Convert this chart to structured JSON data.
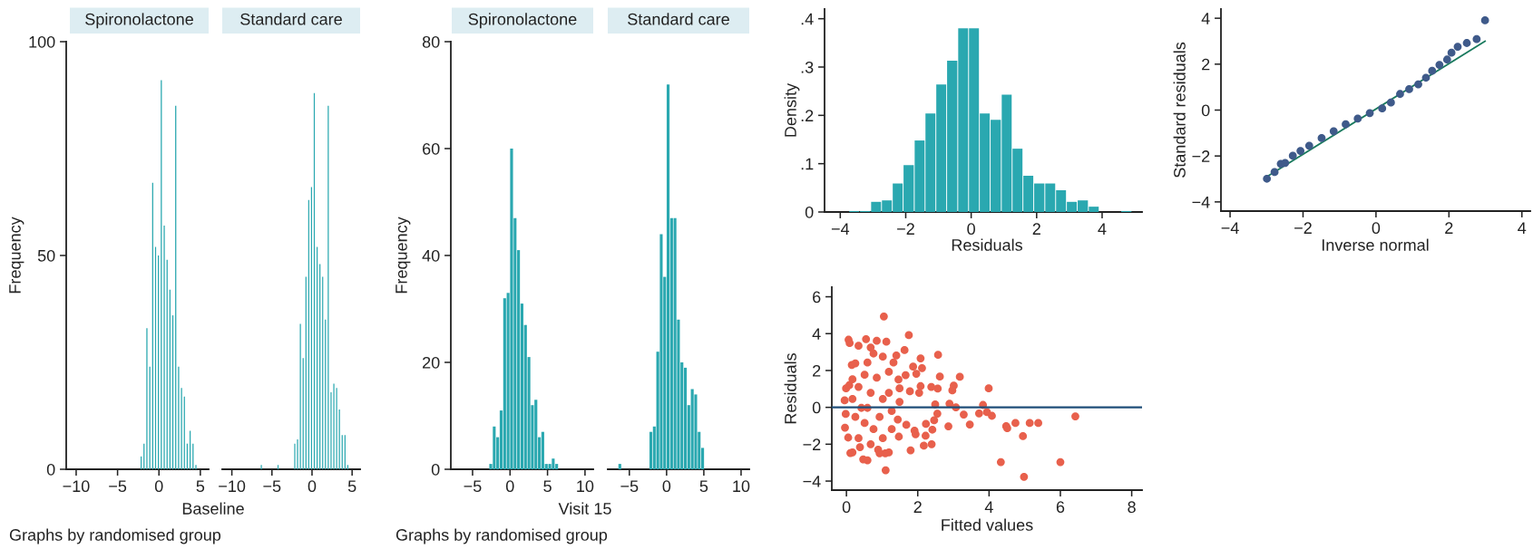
{
  "chart_data": [
    {
      "type": "histogram",
      "title": "Spironolactone",
      "xlabel": "Baseline",
      "ylabel": "Frequency",
      "annotations": [
        "Graphs by randomised group"
      ],
      "color": "#2aa8b0",
      "bins": [
        -2.32,
        -1.98,
        -1.63,
        -1.28,
        -0.93,
        -0.58,
        -0.24,
        0.11,
        0.46,
        0.81,
        1.16,
        1.5,
        1.85,
        2.2,
        2.55,
        2.9,
        3.24,
        3.59,
        3.94,
        4.29,
        4.64
      ],
      "values": [
        3,
        6,
        33,
        24,
        67,
        52,
        50,
        91,
        57,
        49,
        42,
        36,
        85,
        24,
        19,
        17,
        6,
        9,
        6,
        1
      ],
      "xlim": [
        -11.2,
        6
      ],
      "ylim": [
        0,
        100
      ],
      "xticks": [
        -10,
        -5,
        0,
        5
      ],
      "yticks": [
        0,
        50,
        100
      ]
    },
    {
      "type": "histogram",
      "title": "Standard care",
      "color": "#2aa8b0",
      "tick_labels": "x",
      "bins": [
        -6.5,
        -6.15,
        -5.8,
        -5.46,
        -5.11,
        -4.76,
        -4.41,
        -4.06,
        -3.72,
        -3.37,
        -3.02,
        -2.67,
        -2.32,
        -1.98,
        -1.63,
        -1.28,
        -0.93,
        -0.58,
        -0.24,
        0.11,
        0.46,
        0.81,
        1.16,
        1.5,
        1.85,
        2.2,
        2.55,
        2.9,
        3.24,
        3.59,
        3.94,
        4.29,
        4.64
      ],
      "values": [
        1,
        0,
        0,
        0,
        0,
        0,
        1,
        0,
        0,
        0,
        0,
        0,
        6,
        7,
        34,
        26,
        45,
        63,
        66,
        88,
        52,
        48,
        45,
        35,
        85,
        18,
        20,
        19,
        14,
        8,
        8,
        1
      ],
      "xlim": [
        -11.2,
        6
      ],
      "ylim": [
        0,
        100
      ],
      "xticks": [
        -10,
        -5,
        0,
        5
      ]
    },
    {
      "type": "histogram",
      "title": "Spironolactone",
      "xlabel": "Visit 15",
      "ylabel": "Frequency",
      "annotations": [
        "Graphs by randomised group"
      ],
      "color": "#2aa8b0",
      "bins": [
        -2.81,
        -2.34,
        -1.88,
        -1.42,
        -0.95,
        -0.49,
        -0.03,
        0.44,
        0.9,
        1.36,
        1.82,
        2.29,
        2.75,
        3.21,
        3.68,
        4.14,
        4.6,
        5.07,
        5.53,
        5.99,
        6.45
      ],
      "values": [
        1,
        8,
        6,
        11,
        32,
        33,
        60,
        47,
        41,
        31,
        27,
        21,
        12,
        13,
        6,
        7,
        1,
        1,
        2,
        1
      ],
      "xlim": [
        -7.9,
        11.1
      ],
      "ylim": [
        0,
        80
      ],
      "xticks": [
        -5,
        0,
        5,
        10
      ],
      "yticks": [
        0,
        20,
        40,
        60,
        80
      ]
    },
    {
      "type": "histogram",
      "title": "Standard care",
      "color": "#2aa8b0",
      "tick_labels": "x",
      "bins": [
        -6.51,
        -6.05,
        -5.58,
        -5.12,
        -4.66,
        -4.19,
        -3.73,
        -3.27,
        -2.81,
        -2.34,
        -1.88,
        -1.42,
        -0.95,
        -0.49,
        -0.03,
        0.44,
        0.9,
        1.36,
        1.82,
        2.29,
        2.75,
        3.21,
        3.68,
        4.14,
        4.6,
        5.07
      ],
      "values": [
        1,
        0,
        0,
        0,
        0,
        0,
        0,
        0,
        0,
        7,
        8,
        22,
        44,
        36,
        72,
        47,
        47,
        28,
        20,
        19,
        12,
        15,
        14,
        7,
        4
      ],
      "xlim": [
        -7.9,
        11.1
      ],
      "ylim": [
        0,
        80
      ],
      "xticks": [
        -5,
        0,
        5,
        10
      ]
    },
    {
      "type": "histogram",
      "xlabel": "Residuals",
      "ylabel": "Density",
      "color": "#2aa8b0",
      "bins": [
        -3.74,
        -3.41,
        -3.07,
        -2.74,
        -2.41,
        -2.08,
        -1.74,
        -1.41,
        -1.08,
        -0.75,
        -0.41,
        -0.08,
        0.25,
        0.58,
        0.92,
        1.25,
        1.58,
        1.91,
        2.25,
        2.58,
        2.91,
        3.24,
        3.58,
        3.91,
        4.24,
        4.57,
        4.91
      ],
      "values": [
        0.002,
        0.002,
        0.021,
        0.024,
        0.059,
        0.097,
        0.148,
        0.204,
        0.264,
        0.313,
        0.38,
        0.38,
        0.204,
        0.191,
        0.243,
        0.131,
        0.075,
        0.059,
        0.059,
        0.045,
        0.021,
        0.024,
        0.011,
        0,
        0,
        0.002
      ],
      "xlim": [
        -4.48,
        5.22
      ],
      "ylim": [
        0,
        0.42
      ],
      "xticks": [
        -4,
        -2,
        0,
        2,
        4
      ],
      "yticks": [
        0,
        {
          "value": 0.1,
          "label": ".1"
        },
        {
          "value": 0.2,
          "label": ".2"
        },
        {
          "value": 0.3,
          "label": ".3"
        },
        {
          "value": 0.4,
          "label": ".4"
        }
      ]
    },
    {
      "type": "scatter",
      "xlabel": "Inverse normal",
      "ylabel": "Standard residuals",
      "series": [
        {
          "type": "scatter",
          "marker": "circle",
          "color": "#3f5a8a",
          "x": [
            -2.99,
            -2.78,
            -2.61,
            -2.49,
            -2.28,
            -2.07,
            -1.83,
            -1.49,
            -1.16,
            -0.83,
            -0.5,
            -0.17,
            0.17,
            0.41,
            0.66,
            0.91,
            1.16,
            1.37,
            1.54,
            1.74,
            1.95,
            2.07,
            2.24,
            2.49,
            2.76,
            2.99
          ],
          "values": [
            -2.99,
            -2.7,
            -2.34,
            -2.3,
            -1.99,
            -1.78,
            -1.55,
            -1.22,
            -0.92,
            -0.62,
            -0.37,
            -0.13,
            0.07,
            0.33,
            0.7,
            0.91,
            1.12,
            1.41,
            1.71,
            1.97,
            2.2,
            2.5,
            2.76,
            2.92,
            3.09,
            3.91
          ]
        },
        {
          "type": "line",
          "marker": "none",
          "color": "#1a7a5e",
          "x": [
            -2.95,
            2.99
          ],
          "values": [
            -2.86,
            3.0
          ]
        }
      ],
      "xlim": [
        -4.25,
        4.23
      ],
      "ylim": [
        -4.4,
        4.4
      ],
      "xticks": [
        -4,
        -2,
        0,
        2,
        4
      ],
      "yticks": [
        -4,
        -2,
        0,
        2,
        4
      ]
    },
    {
      "type": "scatter",
      "xlabel": "Fitted values",
      "ylabel": "Residuals",
      "marker": "circle",
      "color": "#e8604c",
      "x": [
        1.05,
        1.75,
        0.06,
        0.09,
        0.55,
        0.34,
        0.85,
        1.12,
        1.63,
        2.57,
        1.4,
        1.32,
        2.08,
        1.87,
        2.12,
        1.96,
        2.62,
        3.18,
        1.66,
        1.46,
        3.01,
        2.97,
        3.99,
        2.56,
        2.38,
        2.08,
        1.78,
        2.04,
        2.89,
        2.49,
        3.07,
        3.83,
        3.72,
        3.94,
        4.08,
        3.29,
        2.55,
        2.46,
        2.23,
        3.46,
        2.86,
        2.41,
        1.91,
        1.94,
        2.22,
        1.68,
        4.48,
        4.51,
        4.74,
        5.14,
        5.38,
        4.95,
        6.42,
        4.33,
        6.0,
        4.98,
        2.39,
        2.17,
        1.8,
        1.1,
        1.19,
        1.09,
        0.89,
        0.59,
        0.47,
        0.11,
        0.17,
        0.05,
        -0.04,
        -0.02,
        -0.05,
        -0.01,
        0.08,
        0.17,
        0.15,
        0.25,
        1.47,
        1.44,
        1.49,
        1.49,
        0.42,
        0.68,
        0.85,
        0.59,
        0.76,
        0.68,
        1.02,
        1.19,
        1.02,
        1.27,
        0.51,
        0.76,
        0.34,
        0.68,
        1.02,
        0.25,
        0.17,
        0.34,
        0.51,
        0.93,
        0.59,
        1.19,
        1.27,
        0.93,
        0.38
      ],
      "values": [
        4.93,
        3.92,
        3.67,
        3.49,
        3.7,
        3.34,
        3.61,
        3.56,
        3.11,
        2.85,
        2.82,
        2.43,
        2.66,
        2.21,
        2.13,
        1.82,
        1.67,
        1.66,
        1.75,
        1.51,
        1.18,
        0.92,
        1.03,
        1.02,
        1.11,
        1.15,
        0.87,
        0.79,
        0.2,
        0.16,
        0.0,
        0.13,
        -0.33,
        -0.26,
        -0.46,
        -0.39,
        -0.34,
        -0.7,
        -0.9,
        -0.93,
        -1.03,
        -1.21,
        -1.26,
        -1.46,
        -1.54,
        -0.95,
        -1.02,
        -1.13,
        -0.85,
        -0.85,
        -0.85,
        -1.56,
        -0.49,
        -2.97,
        -2.97,
        -3.77,
        -2.0,
        -2.08,
        -2.33,
        -3.41,
        -2.44,
        -2.49,
        -2.3,
        -2.87,
        -2.82,
        -2.48,
        -2.44,
        -1.64,
        -1.1,
        -0.36,
        0.38,
        1.03,
        1.2,
        1.52,
        2.3,
        2.39,
        -1.59,
        -0.66,
        0.3,
        1.03,
        -0.03,
        0.79,
        1.61,
        2.43,
        2.92,
        3.25,
        2.75,
        1.93,
        0.46,
        -0.2,
        -0.85,
        -1.18,
        -1.67,
        -2.0,
        -1.67,
        -0.52,
        0.46,
        1.11,
        1.77,
        -0.52,
        -0.03,
        0.79,
        -1.18,
        -2.49,
        -2.16
      ],
      "ref_lines": [
        {
          "axis": "y",
          "value": 0,
          "color": "#1f4e79"
        }
      ],
      "xlim": [
        -0.41,
        8.29
      ],
      "ylim": [
        -4.49,
        6.52
      ],
      "xticks": [
        0,
        2,
        4,
        6,
        8
      ],
      "yticks": [
        -4,
        -2,
        0,
        2,
        4,
        6
      ]
    }
  ]
}
